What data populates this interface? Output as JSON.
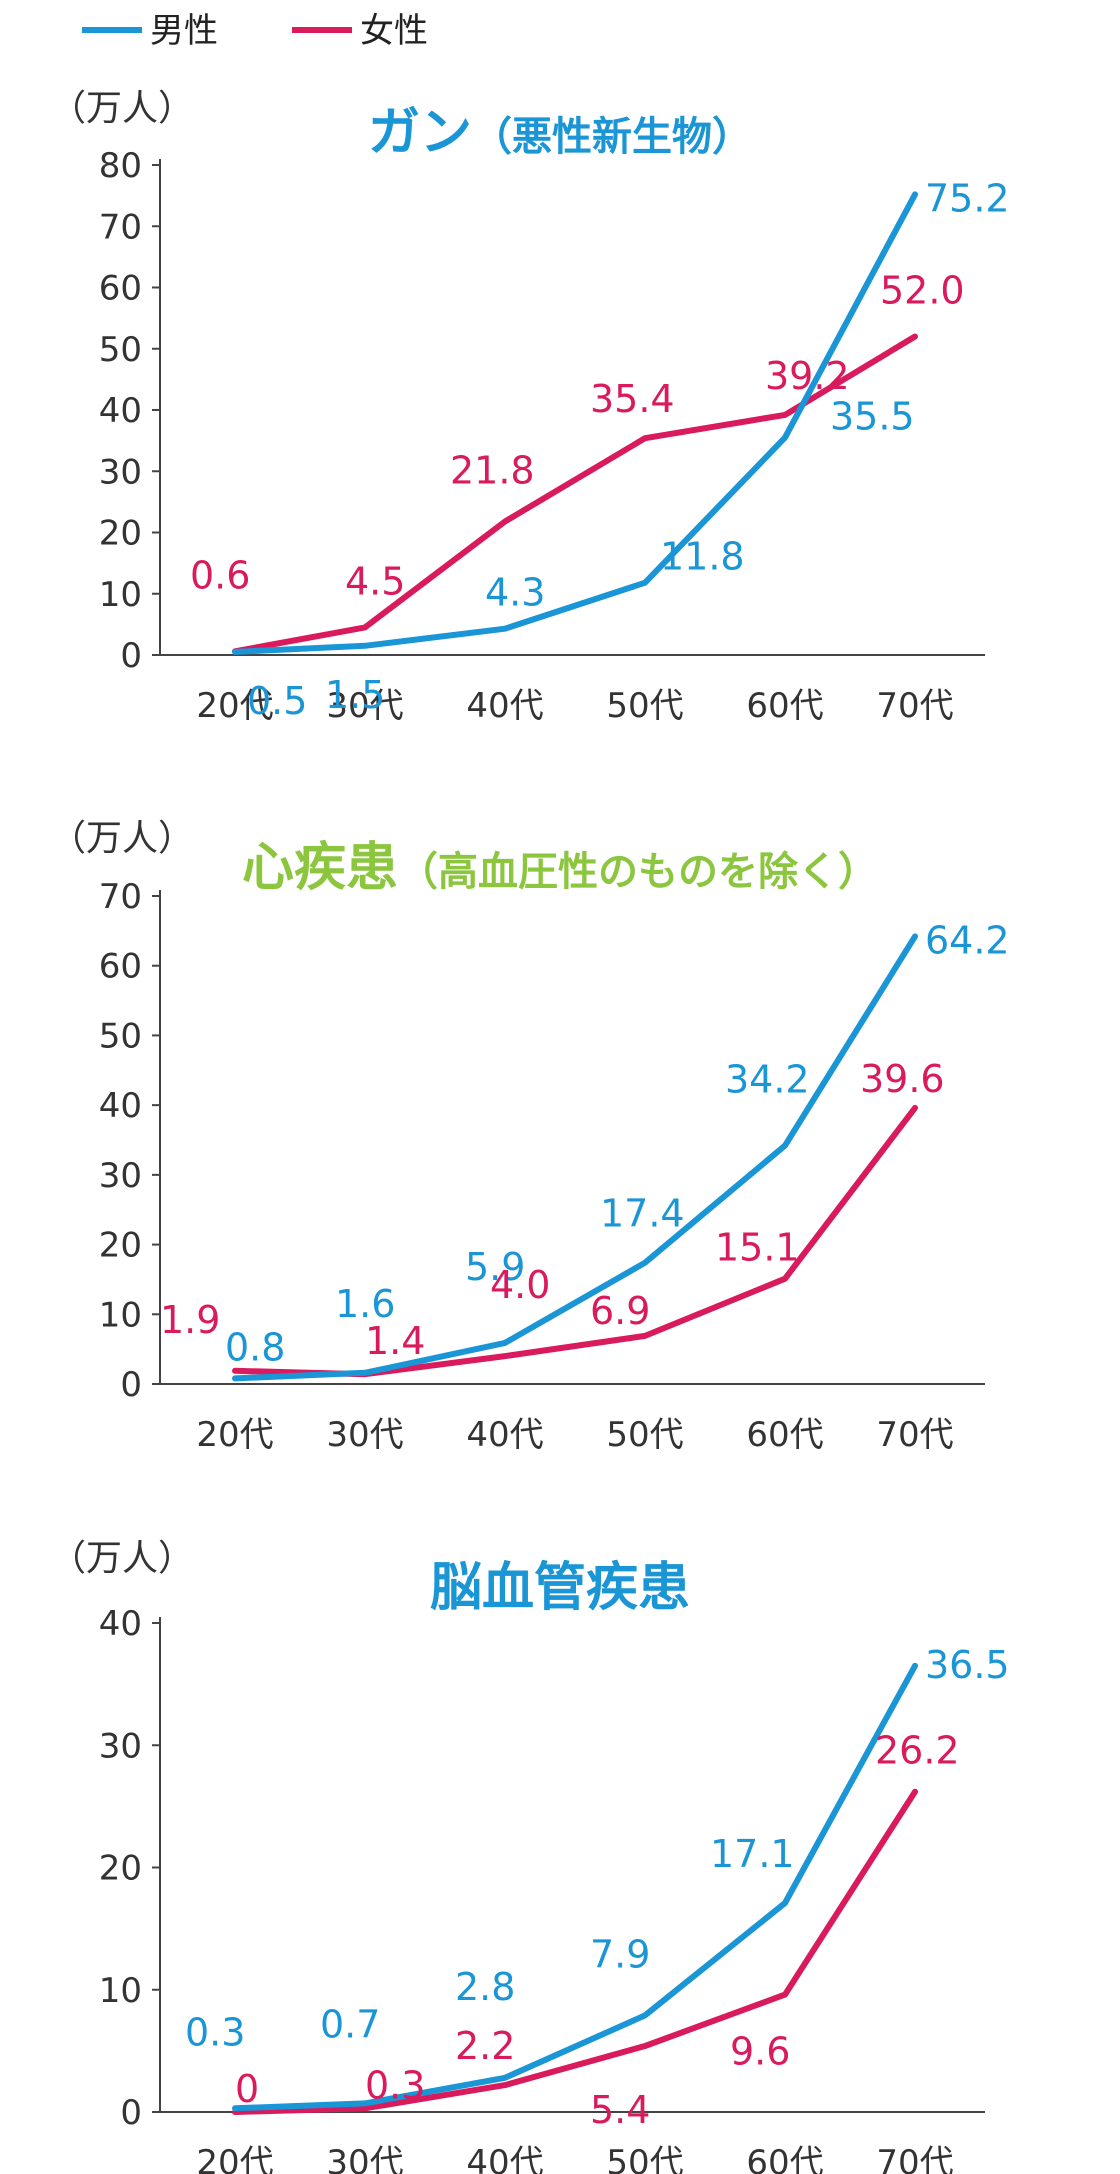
{
  "legend": [
    {
      "label": "男性",
      "color": "#1a95d5"
    },
    {
      "label": "女性",
      "color": "#d91a5d"
    }
  ],
  "colors": {
    "male": "#1a95d5",
    "female": "#d91a5d",
    "title_green": "#8cc63f",
    "title_blue": "#1a95d5",
    "axis": "#444444"
  },
  "chart_data": [
    {
      "type": "line",
      "title": "ガン",
      "title_sub": "（悪性新生物）",
      "unit": "（万人）",
      "categories": [
        "20代",
        "30代",
        "40代",
        "50代",
        "60代",
        "70代"
      ],
      "ylim": [
        0,
        80
      ],
      "yticks": [
        0,
        10,
        20,
        30,
        40,
        50,
        60,
        70,
        80
      ],
      "series": [
        {
          "name": "男性",
          "values": [
            0.5,
            1.5,
            4.3,
            11.8,
            35.5,
            75.2
          ],
          "labels": [
            "0.5",
            "1.5",
            "4.3",
            "11.8",
            "35.5",
            "75.2"
          ]
        },
        {
          "name": "女性",
          "values": [
            0.6,
            4.5,
            21.8,
            35.4,
            39.2,
            52.0
          ],
          "labels": [
            "0.6",
            "4.5",
            "21.8",
            "35.4",
            "39.2",
            "52.0"
          ]
        }
      ]
    },
    {
      "type": "line",
      "title": "心疾患",
      "title_sub": "（高血圧性のものを除く）",
      "unit": "（万人）",
      "categories": [
        "20代",
        "30代",
        "40代",
        "50代",
        "60代",
        "70代"
      ],
      "ylim": [
        0,
        70
      ],
      "yticks": [
        0,
        10,
        20,
        30,
        40,
        50,
        60,
        70
      ],
      "series": [
        {
          "name": "男性",
          "values": [
            0.8,
            1.6,
            5.9,
            17.4,
            34.2,
            64.2
          ],
          "labels": [
            "0.8",
            "1.6",
            "5.9",
            "17.4",
            "34.2",
            "64.2"
          ]
        },
        {
          "name": "女性",
          "values": [
            1.9,
            1.4,
            4.0,
            6.9,
            15.1,
            39.6
          ],
          "labels": [
            "1.9",
            "1.4",
            "4.0",
            "6.9",
            "15.1",
            "39.6"
          ]
        }
      ]
    },
    {
      "type": "line",
      "title": "脳血管疾患",
      "title_sub": "",
      "unit": "（万人）",
      "categories": [
        "20代",
        "30代",
        "40代",
        "50代",
        "60代",
        "70代"
      ],
      "ylim": [
        0,
        40
      ],
      "yticks": [
        0,
        10,
        20,
        30,
        40
      ],
      "series": [
        {
          "name": "男性",
          "values": [
            0.3,
            0.7,
            2.8,
            7.9,
            17.1,
            36.5
          ],
          "labels": [
            "0.3",
            "0.7",
            "2.8",
            "7.9",
            "17.1",
            "36.5"
          ]
        },
        {
          "name": "女性",
          "values": [
            0,
            0.3,
            2.2,
            5.4,
            9.6,
            26.2
          ],
          "labels": [
            "0",
            "0.3",
            "2.2",
            "5.4",
            "9.6",
            "26.2"
          ]
        }
      ]
    }
  ]
}
